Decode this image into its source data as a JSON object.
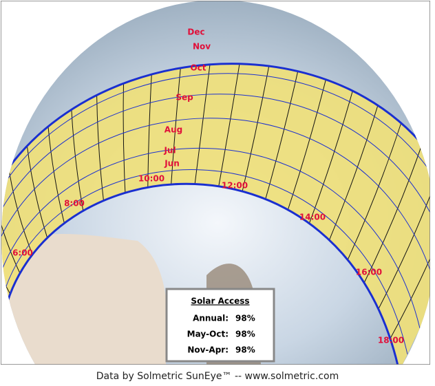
{
  "sun_path": {
    "months": [
      "Dec",
      "Nov",
      "Oct",
      "Sep",
      "Aug",
      "Jul",
      "Jun"
    ],
    "hours": [
      "6:00",
      "8:00",
      "10:00",
      "12:00",
      "14:00",
      "16:00",
      "18:00"
    ]
  },
  "solar_access": {
    "title": "Solar Access",
    "rows": [
      [
        "Annual:",
        "98%"
      ],
      [
        "May-Oct:",
        "98%"
      ],
      [
        "Nov-Apr:",
        "98%"
      ]
    ]
  },
  "caption": "Data by Solmetric SunEye™ -- www.solmetric.com"
}
